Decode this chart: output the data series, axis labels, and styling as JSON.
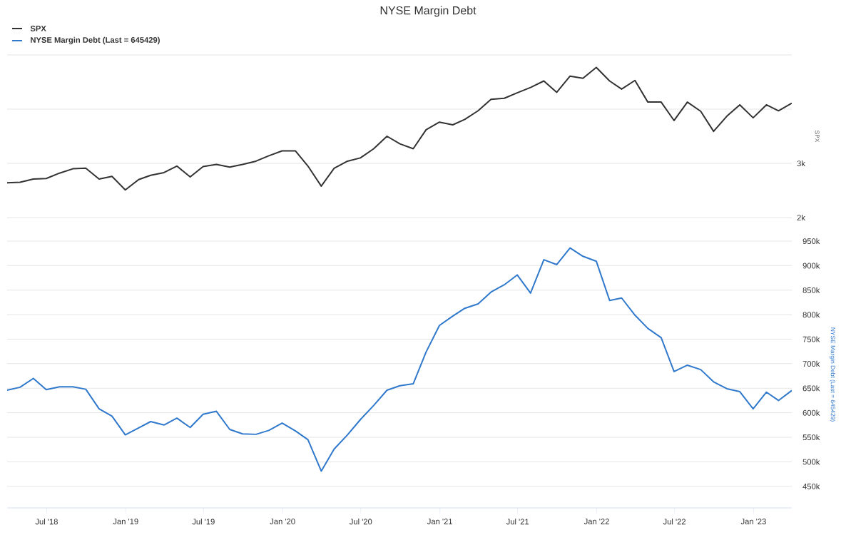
{
  "chart_data": [
    {
      "type": "line",
      "title": "NYSE Margin Debt",
      "ylabel": "SPX",
      "x": [
        "2018-03-31",
        "2018-04-30",
        "2018-05-31",
        "2018-06-30",
        "2018-07-31",
        "2018-08-31",
        "2018-09-30",
        "2018-10-31",
        "2018-11-30",
        "2018-12-31",
        "2019-01-31",
        "2019-02-28",
        "2019-03-31",
        "2019-04-30",
        "2019-05-31",
        "2019-06-30",
        "2019-07-31",
        "2019-08-31",
        "2019-09-30",
        "2019-10-31",
        "2019-11-30",
        "2019-12-31",
        "2020-01-31",
        "2020-02-29",
        "2020-03-31",
        "2020-04-30",
        "2020-05-31",
        "2020-06-30",
        "2020-07-31",
        "2020-08-31",
        "2020-09-30",
        "2020-10-31",
        "2020-11-30",
        "2020-12-31",
        "2021-01-31",
        "2021-02-28",
        "2021-03-31",
        "2021-04-30",
        "2021-05-31",
        "2021-06-30",
        "2021-07-31",
        "2021-08-31",
        "2021-09-30",
        "2021-10-31",
        "2021-11-30",
        "2021-12-31",
        "2022-01-31",
        "2022-02-28",
        "2022-03-31",
        "2022-04-30",
        "2022-05-31",
        "2022-06-30",
        "2022-07-31",
        "2022-08-31",
        "2022-09-30",
        "2022-10-31",
        "2022-11-30",
        "2022-12-31",
        "2023-01-31",
        "2023-02-28",
        "2023-03-31"
      ],
      "series": [
        {
          "name": "SPX",
          "color": "#333333",
          "values": [
            2640,
            2650,
            2710,
            2720,
            2820,
            2900,
            2910,
            2710,
            2760,
            2510,
            2700,
            2780,
            2830,
            2950,
            2750,
            2940,
            2980,
            2930,
            2980,
            3040,
            3140,
            3230,
            3230,
            2950,
            2580,
            2910,
            3040,
            3100,
            3270,
            3500,
            3360,
            3270,
            3620,
            3760,
            3710,
            3810,
            3970,
            4180,
            4200,
            4300,
            4400,
            4520,
            4310,
            4610,
            4570,
            4770,
            4520,
            4370,
            4530,
            4130,
            4130,
            3790,
            4130,
            3960,
            3590,
            3870,
            4080,
            3840,
            4080,
            3970,
            4110
          ]
        }
      ],
      "xlim": [
        "2018-03-31",
        "2023-03-31"
      ],
      "ylim": [
        2000,
        5000
      ],
      "yticks": [
        {
          "value": 2000,
          "label": "2k"
        },
        {
          "value": 3000,
          "label": "3k"
        },
        {
          "value": 4000,
          "label": null
        },
        {
          "value": 5000,
          "label": null
        }
      ],
      "grid": "y",
      "legend": "top left",
      "tick_labels": "y"
    },
    {
      "type": "line",
      "ylabel": "NYSE Margin Debt (Last = 645429)",
      "x": [
        "2018-03-31",
        "2018-04-30",
        "2018-05-31",
        "2018-06-30",
        "2018-07-31",
        "2018-08-31",
        "2018-09-30",
        "2018-10-31",
        "2018-11-30",
        "2018-12-31",
        "2019-01-31",
        "2019-02-28",
        "2019-03-31",
        "2019-04-30",
        "2019-05-31",
        "2019-06-30",
        "2019-07-31",
        "2019-08-31",
        "2019-09-30",
        "2019-10-31",
        "2019-11-30",
        "2019-12-31",
        "2020-01-31",
        "2020-02-29",
        "2020-03-31",
        "2020-04-30",
        "2020-05-31",
        "2020-06-30",
        "2020-07-31",
        "2020-08-31",
        "2020-09-30",
        "2020-10-31",
        "2020-11-30",
        "2020-12-31",
        "2021-01-31",
        "2021-02-28",
        "2021-03-31",
        "2021-04-30",
        "2021-05-31",
        "2021-06-30",
        "2021-07-31",
        "2021-08-31",
        "2021-09-30",
        "2021-10-31",
        "2021-11-30",
        "2021-12-31",
        "2022-01-31",
        "2022-02-28",
        "2022-03-31",
        "2022-04-30",
        "2022-05-31",
        "2022-06-30",
        "2022-07-31",
        "2022-08-31",
        "2022-09-30",
        "2022-10-31",
        "2022-11-30",
        "2022-12-31",
        "2023-01-31",
        "2023-02-28",
        "2023-03-31"
      ],
      "series": [
        {
          "name": "NYSE Margin Debt (Last = 645429)",
          "color": "#3079cc",
          "values": [
            646000,
            652000,
            670000,
            647000,
            653000,
            653000,
            648000,
            608000,
            593000,
            555000,
            569000,
            582000,
            575000,
            589000,
            570000,
            597000,
            603000,
            566000,
            557000,
            556000,
            564000,
            579000,
            563000,
            545000,
            481000,
            526000,
            555000,
            586000,
            615000,
            646000,
            655000,
            659000,
            724000,
            778000,
            797000,
            813000,
            822000,
            846000,
            861000,
            881000,
            844000,
            912000,
            902000,
            936000,
            919000,
            909000,
            829000,
            834000,
            799000,
            772000,
            753000,
            684000,
            697000,
            688000,
            663000,
            649000,
            643000,
            608000,
            642000,
            625000,
            645429
          ]
        }
      ],
      "xlim": [
        "2018-03-31",
        "2023-03-31"
      ],
      "ylim": [
        406000,
        950000
      ],
      "xticks": [
        {
          "value": "2018-07-01",
          "label": "Jul '18"
        },
        {
          "value": "2019-01-01",
          "label": "Jan '19"
        },
        {
          "value": "2019-07-01",
          "label": "Jul '19"
        },
        {
          "value": "2020-01-01",
          "label": "Jan '20"
        },
        {
          "value": "2020-07-01",
          "label": "Jul '20"
        },
        {
          "value": "2021-01-01",
          "label": "Jan '21"
        },
        {
          "value": "2021-07-01",
          "label": "Jul '21"
        },
        {
          "value": "2022-01-01",
          "label": "Jan '22"
        },
        {
          "value": "2022-07-01",
          "label": "Jul '22"
        },
        {
          "value": "2023-01-01",
          "label": "Jan '23"
        }
      ],
      "yticks": [
        {
          "value": 450000,
          "label": "450k"
        },
        {
          "value": 500000,
          "label": "500k"
        },
        {
          "value": 550000,
          "label": "550k"
        },
        {
          "value": 600000,
          "label": "600k"
        },
        {
          "value": 650000,
          "label": "650k"
        },
        {
          "value": 700000,
          "label": "700k"
        },
        {
          "value": 750000,
          "label": "750k"
        },
        {
          "value": 800000,
          "label": "800k"
        },
        {
          "value": 850000,
          "label": "850k"
        },
        {
          "value": 900000,
          "label": "900k"
        },
        {
          "value": 950000,
          "label": "950k"
        }
      ],
      "grid": "y",
      "legend": "top left"
    }
  ]
}
